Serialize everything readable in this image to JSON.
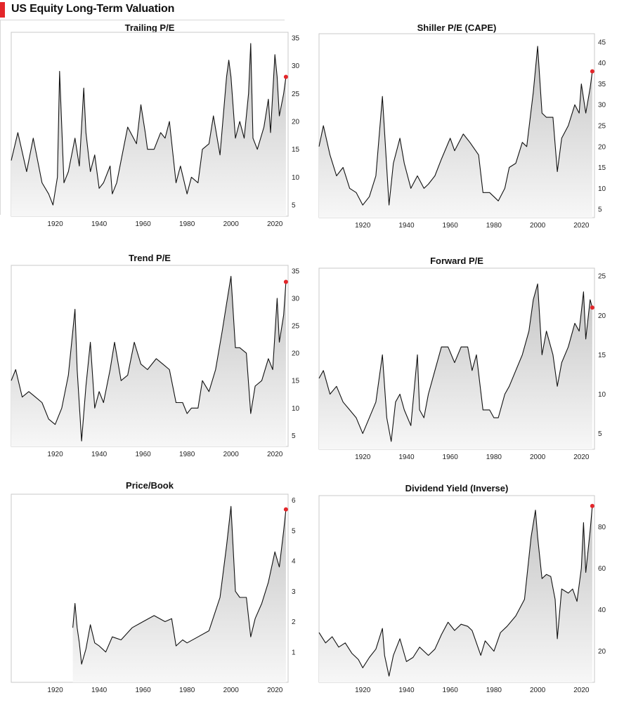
{
  "header": {
    "title": "US Equity Long-Term Valuation",
    "accent_color": "#e3262a"
  },
  "chart_data": [
    {
      "type": "area",
      "title": "Trailing P/E",
      "x_ticks": [
        1920,
        1940,
        1960,
        1980,
        2000,
        2020
      ],
      "y_ticks": [
        5,
        10,
        15,
        20,
        25,
        30,
        35
      ],
      "xlim": [
        1900,
        2026
      ],
      "ylim": [
        3,
        36
      ],
      "current_marker": {
        "x": 2025,
        "y": 28
      },
      "x": [
        1900,
        1903,
        1907,
        1910,
        1914,
        1917,
        1919,
        1921,
        1922,
        1924,
        1926,
        1929,
        1931,
        1933,
        1934,
        1936,
        1938,
        1940,
        1942,
        1945,
        1946,
        1948,
        1950,
        1953,
        1957,
        1959,
        1961,
        1962,
        1965,
        1968,
        1970,
        1972,
        1975,
        1977,
        1980,
        1982,
        1985,
        1987,
        1990,
        1992,
        1995,
        1998,
        1999,
        2000,
        2002,
        2004,
        2006,
        2008,
        2009,
        2010,
        2012,
        2015,
        2017,
        2018,
        2020,
        2021,
        2022,
        2024,
        2025
      ],
      "y": [
        13,
        18,
        11,
        17,
        9,
        7,
        5,
        10,
        29,
        9,
        11,
        17,
        12,
        26,
        18,
        11,
        14,
        8,
        9,
        12,
        7,
        9,
        13,
        19,
        16,
        23,
        18,
        15,
        15,
        18,
        17,
        20,
        9,
        12,
        7,
        10,
        9,
        15,
        16,
        21,
        14,
        28,
        31,
        28,
        17,
        20,
        17,
        25,
        34,
        17,
        15,
        19,
        24,
        18,
        32,
        28,
        21,
        25,
        28
      ]
    },
    {
      "type": "area",
      "title": "Shiller P/E (CAPE)",
      "x_ticks": [
        1920,
        1940,
        1960,
        1980,
        2000,
        2020
      ],
      "y_ticks": [
        5,
        10,
        15,
        20,
        25,
        30,
        35,
        40,
        45
      ],
      "xlim": [
        1900,
        2026
      ],
      "ylim": [
        3,
        47
      ],
      "current_marker": {
        "x": 2025,
        "y": 38
      },
      "x": [
        1900,
        1902,
        1905,
        1908,
        1911,
        1914,
        1917,
        1920,
        1923,
        1926,
        1929,
        1932,
        1934,
        1937,
        1939,
        1942,
        1945,
        1948,
        1950,
        1953,
        1956,
        1960,
        1962,
        1966,
        1969,
        1973,
        1975,
        1978,
        1980,
        1982,
        1985,
        1987,
        1990,
        1993,
        1995,
        1998,
        2000,
        2002,
        2004,
        2007,
        2009,
        2011,
        2014,
        2017,
        2019,
        2020,
        2022,
        2024,
        2025
      ],
      "y": [
        20,
        25,
        18,
        13,
        15,
        10,
        9,
        6,
        8,
        13,
        32,
        6,
        16,
        22,
        16,
        10,
        13,
        10,
        11,
        13,
        17,
        22,
        19,
        23,
        21,
        18,
        9,
        9,
        8,
        7,
        10,
        15,
        16,
        21,
        20,
        33,
        44,
        28,
        27,
        27,
        14,
        22,
        25,
        30,
        28,
        35,
        28,
        34,
        38
      ]
    },
    {
      "type": "area",
      "title": "Trend P/E",
      "x_ticks": [
        1920,
        1940,
        1960,
        1980,
        2000,
        2020
      ],
      "y_ticks": [
        5,
        10,
        15,
        20,
        25,
        30,
        35
      ],
      "xlim": [
        1900,
        2026
      ],
      "ylim": [
        3,
        36
      ],
      "current_marker": {
        "x": 2025,
        "y": 33
      },
      "x": [
        1900,
        1902,
        1905,
        1908,
        1911,
        1914,
        1917,
        1920,
        1923,
        1926,
        1929,
        1930,
        1932,
        1934,
        1936,
        1938,
        1940,
        1942,
        1945,
        1947,
        1950,
        1953,
        1956,
        1959,
        1962,
        1966,
        1969,
        1972,
        1975,
        1978,
        1980,
        1982,
        1985,
        1987,
        1990,
        1993,
        1996,
        1998,
        2000,
        2002,
        2004,
        2007,
        2009,
        2011,
        2014,
        2017,
        2019,
        2021,
        2022,
        2024,
        2025
      ],
      "y": [
        15,
        17,
        12,
        13,
        12,
        11,
        8,
        7,
        10,
        16,
        28,
        17,
        4,
        14,
        22,
        10,
        13,
        11,
        17,
        22,
        15,
        16,
        22,
        18,
        17,
        19,
        18,
        17,
        11,
        11,
        9,
        10,
        10,
        15,
        13,
        17,
        24,
        29,
        34,
        21,
        21,
        20,
        9,
        14,
        15,
        19,
        17,
        30,
        22,
        27,
        33
      ]
    },
    {
      "type": "area",
      "title": "Forward P/E",
      "x_ticks": [
        1920,
        1940,
        1960,
        1980,
        2000,
        2020
      ],
      "y_ticks": [
        5,
        10,
        15,
        20,
        25
      ],
      "xlim": [
        1900,
        2026
      ],
      "ylim": [
        3,
        26
      ],
      "current_marker": {
        "x": 2025,
        "y": 21
      },
      "x": [
        1900,
        1902,
        1905,
        1908,
        1911,
        1914,
        1917,
        1920,
        1923,
        1926,
        1929,
        1931,
        1933,
        1935,
        1937,
        1939,
        1942,
        1945,
        1946,
        1948,
        1950,
        1953,
        1956,
        1959,
        1962,
        1965,
        1968,
        1970,
        1972,
        1975,
        1978,
        1980,
        1982,
        1985,
        1987,
        1990,
        1993,
        1996,
        1998,
        2000,
        2002,
        2004,
        2007,
        2009,
        2011,
        2014,
        2017,
        2019,
        2021,
        2022,
        2024,
        2025
      ],
      "y": [
        12,
        13,
        10,
        11,
        9,
        8,
        7,
        5,
        7,
        9,
        15,
        7,
        4,
        9,
        10,
        8,
        6,
        15,
        8,
        7,
        10,
        13,
        16,
        16,
        14,
        16,
        16,
        13,
        15,
        8,
        8,
        7,
        7,
        10,
        11,
        13,
        15,
        18,
        22,
        24,
        15,
        18,
        15,
        11,
        14,
        16,
        19,
        18,
        23,
        17,
        22,
        21
      ]
    },
    {
      "type": "area",
      "title": "Price/Book",
      "x_ticks": [
        1920,
        1940,
        1960,
        1980,
        2000,
        2020
      ],
      "y_ticks": [
        1,
        2,
        3,
        4,
        5,
        6
      ],
      "xlim": [
        1900,
        2026
      ],
      "ylim": [
        0,
        6.2
      ],
      "current_marker": {
        "x": 2025,
        "y": 5.7
      },
      "x": [
        1928,
        1929,
        1930,
        1931,
        1932,
        1934,
        1936,
        1938,
        1940,
        1943,
        1946,
        1950,
        1955,
        1960,
        1965,
        1970,
        1973,
        1975,
        1978,
        1980,
        1985,
        1990,
        1995,
        1998,
        2000,
        2002,
        2004,
        2007,
        2009,
        2011,
        2014,
        2017,
        2020,
        2022,
        2024,
        2025
      ],
      "y": [
        1.8,
        2.6,
        1.8,
        1.3,
        0.6,
        1.1,
        1.9,
        1.3,
        1.2,
        1.0,
        1.5,
        1.4,
        1.8,
        2.0,
        2.2,
        2.0,
        2.1,
        1.2,
        1.4,
        1.3,
        1.5,
        1.7,
        2.8,
        4.5,
        5.8,
        3.0,
        2.8,
        2.8,
        1.5,
        2.1,
        2.6,
        3.3,
        4.3,
        3.8,
        5.0,
        5.7
      ]
    },
    {
      "type": "area",
      "title": "Dividend Yield (Inverse)",
      "x_ticks": [
        1920,
        1940,
        1960,
        1980,
        2000,
        2020
      ],
      "y_ticks": [
        20,
        40,
        60,
        80
      ],
      "xlim": [
        1900,
        2026
      ],
      "ylim": [
        5,
        95
      ],
      "current_marker": {
        "x": 2025,
        "y": 90
      },
      "x": [
        1900,
        1903,
        1906,
        1909,
        1912,
        1915,
        1918,
        1920,
        1923,
        1926,
        1929,
        1930,
        1932,
        1934,
        1937,
        1940,
        1943,
        1946,
        1950,
        1953,
        1956,
        1959,
        1962,
        1965,
        1968,
        1970,
        1974,
        1976,
        1980,
        1983,
        1986,
        1990,
        1994,
        1997,
        1999,
        2000,
        2002,
        2004,
        2006,
        2008,
        2009,
        2011,
        2014,
        2016,
        2018,
        2020,
        2021,
        2022,
        2024,
        2025
      ],
      "y": [
        29,
        24,
        27,
        22,
        24,
        19,
        16,
        12,
        17,
        21,
        31,
        18,
        8,
        18,
        26,
        15,
        17,
        22,
        18,
        21,
        28,
        34,
        30,
        33,
        32,
        30,
        18,
        25,
        20,
        29,
        32,
        37,
        45,
        75,
        88,
        75,
        55,
        57,
        56,
        45,
        26,
        50,
        48,
        50,
        44,
        60,
        82,
        58,
        78,
        90
      ]
    }
  ]
}
